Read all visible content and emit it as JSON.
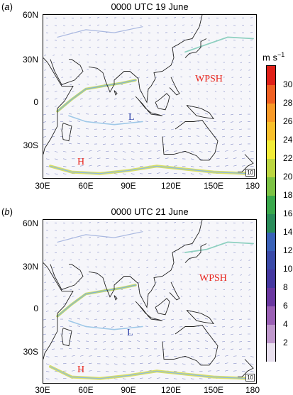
{
  "panels": [
    {
      "label": "a",
      "title": "0000 UTC 19 June",
      "systems": [
        {
          "text": "WPSH",
          "color": "#e8241c",
          "lon": 140,
          "lat": 16
        },
        {
          "text": "L",
          "color": "#2c3fa8",
          "lon": 93,
          "lat": -10
        },
        {
          "text": "H",
          "color": "#e8241c",
          "lon": 57,
          "lat": -40
        }
      ],
      "reference_vector": "10"
    },
    {
      "label": "b",
      "title": "0000 UTC 21 June",
      "systems": [
        {
          "text": "WPSH",
          "color": "#e8241c",
          "lon": 143,
          "lat": 20
        },
        {
          "text": "L",
          "color": "#2c3fa8",
          "lon": 92,
          "lat": -17
        },
        {
          "text": "H",
          "color": "#e8241c",
          "lon": 57,
          "lat": -42
        }
      ],
      "reference_vector": "10"
    }
  ],
  "axes": {
    "lat_ticks": [
      "60N",
      "30N",
      "0",
      "30S"
    ],
    "lon_ticks": [
      "30E",
      "60E",
      "90E",
      "120E",
      "150E",
      "180"
    ],
    "lat_range": [
      -50,
      60
    ],
    "lon_range": [
      30,
      180
    ]
  },
  "colorbar": {
    "title": "m s",
    "title_exp": "−1",
    "labels": [
      "2",
      "4",
      "6",
      "8",
      "10",
      "12",
      "14",
      "16",
      "18",
      "20",
      "22",
      "24",
      "26",
      "28",
      "30"
    ],
    "colors": [
      "#e8e0ee",
      "#bf98cc",
      "#9a60b4",
      "#6a38a0",
      "#4438a0",
      "#3a4aa8",
      "#3a62b8",
      "#2a8c5a",
      "#3aa84c",
      "#7cc244",
      "#bcd640",
      "#f2ec38",
      "#f8c02c",
      "#f89a28",
      "#f06022",
      "#e02018"
    ]
  }
}
